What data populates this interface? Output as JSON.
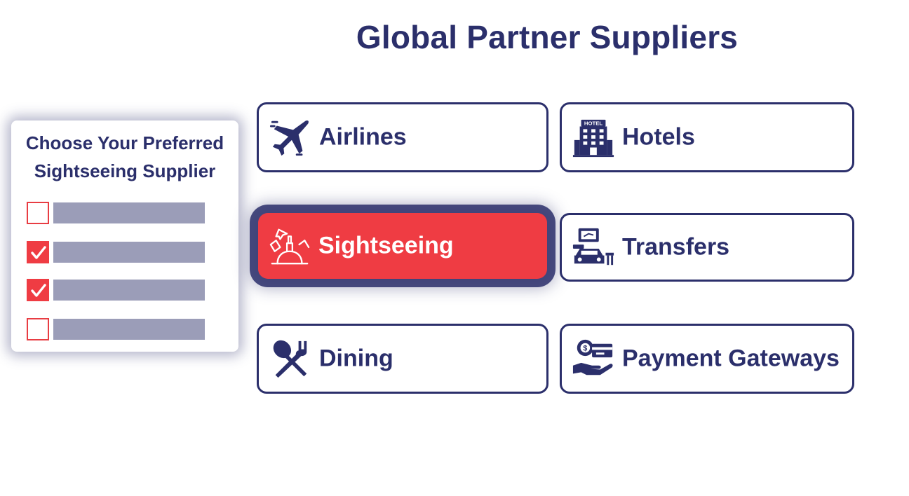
{
  "page": {
    "title": "Global Partner Suppliers"
  },
  "panel": {
    "title_line1": "Choose Your Preferred",
    "title_line2": "Sightseeing Supplier",
    "choices": [
      {
        "checked": false
      },
      {
        "checked": true
      },
      {
        "checked": true
      },
      {
        "checked": false
      }
    ]
  },
  "categories": [
    {
      "label": "Airlines",
      "icon": "airplane-icon",
      "active": false
    },
    {
      "label": "Hotels",
      "icon": "hotel-building-icon",
      "active": false
    },
    {
      "label": "Sightseeing",
      "icon": "sightseeing-landmark-icon",
      "active": true
    },
    {
      "label": "Transfers",
      "icon": "transfer-car-icon",
      "active": false
    },
    {
      "label": "Dining",
      "icon": "spoon-fork-icon",
      "active": false
    },
    {
      "label": "Payment Gateways",
      "icon": "payment-hand-card-icon",
      "active": false
    }
  ],
  "colors": {
    "navy": "#2b2f6b",
    "accent_red": "#ef3c43",
    "placeholder_gray": "#9b9db8",
    "white": "#ffffff"
  }
}
